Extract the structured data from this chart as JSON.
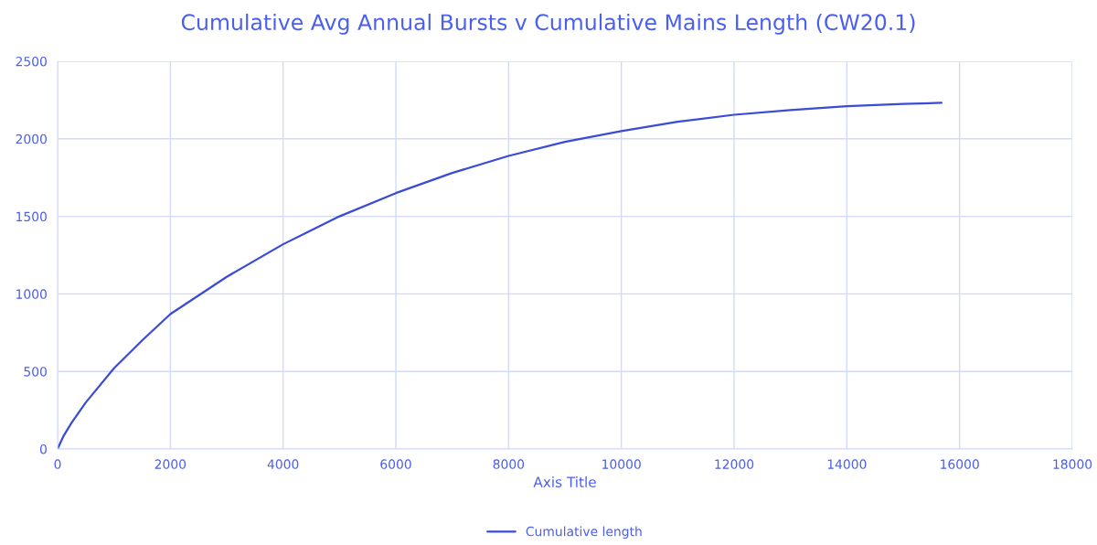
{
  "chart_data": {
    "type": "line",
    "title": "Cumulative Avg Annual Bursts v Cumulative Mains Length (CW20.1)",
    "xlabel": "Axis Title",
    "x": [
      0,
      100,
      250,
      500,
      1000,
      1500,
      2000,
      3000,
      4000,
      5000,
      6000,
      7000,
      8000,
      9000,
      10000,
      11000,
      12000,
      13000,
      14000,
      15000,
      15680
    ],
    "series": [
      {
        "name": "Cumulative length",
        "color": "#3a4bd6",
        "values": [
          0,
          80,
          170,
          300,
          520,
          700,
          870,
          1110,
          1320,
          1500,
          1650,
          1780,
          1890,
          1980,
          2050,
          2110,
          2155,
          2185,
          2210,
          2225,
          2232
        ]
      }
    ],
    "xlim": [
      0,
      18000
    ],
    "xticks": [
      0,
      2000,
      4000,
      6000,
      8000,
      10000,
      12000,
      14000,
      16000,
      18000
    ],
    "ylim": [
      0,
      2500
    ],
    "yticks": [
      0,
      500,
      1000,
      1500,
      2000,
      2500
    ],
    "grid": true,
    "legend": "bottom",
    "marker": "none",
    "line_style": "solid"
  }
}
